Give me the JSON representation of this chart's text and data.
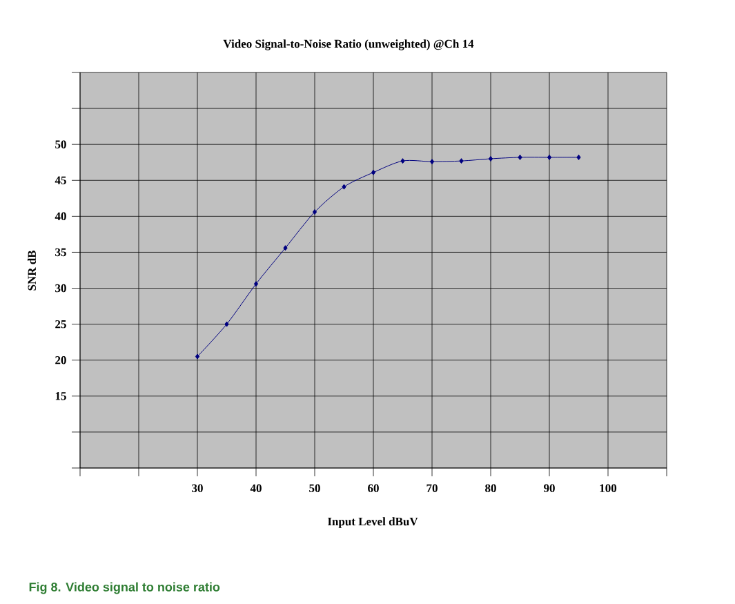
{
  "chart_data": {
    "type": "line",
    "title": "Video Signal-to-Noise Ratio (unweighted) @Ch 14",
    "xlabel": "Input Level dBuV",
    "ylabel": "SNR dB",
    "x": [
      30,
      35,
      40,
      45,
      50,
      55,
      60,
      65,
      70,
      75,
      80,
      85,
      90,
      95
    ],
    "series": [
      {
        "color": "#000080",
        "values": [
          20.5,
          25.0,
          30.6,
          35.6,
          40.6,
          44.1,
          46.1,
          47.7,
          47.6,
          47.7,
          48.0,
          48.2,
          48.2,
          48.2
        ]
      }
    ],
    "xlim": [
      10,
      110
    ],
    "xticks": [
      {
        "value": 10,
        "label": null
      },
      {
        "value": 20,
        "label": null
      },
      30,
      40,
      50,
      60,
      70,
      80,
      90,
      100,
      {
        "value": 110,
        "label": null
      }
    ],
    "ylim": [
      5,
      60
    ],
    "yticks": [
      {
        "value": 5,
        "label": null
      },
      {
        "value": 10,
        "label": null
      },
      15,
      20,
      25,
      30,
      35,
      40,
      45,
      50,
      {
        "value": 55,
        "label": null
      },
      {
        "value": 60,
        "label": null
      }
    ],
    "grid": true,
    "marker": "diamond",
    "line_style": "solid",
    "annotations": [
      "Fig 8.    Video signal to noise ratio"
    ]
  }
}
